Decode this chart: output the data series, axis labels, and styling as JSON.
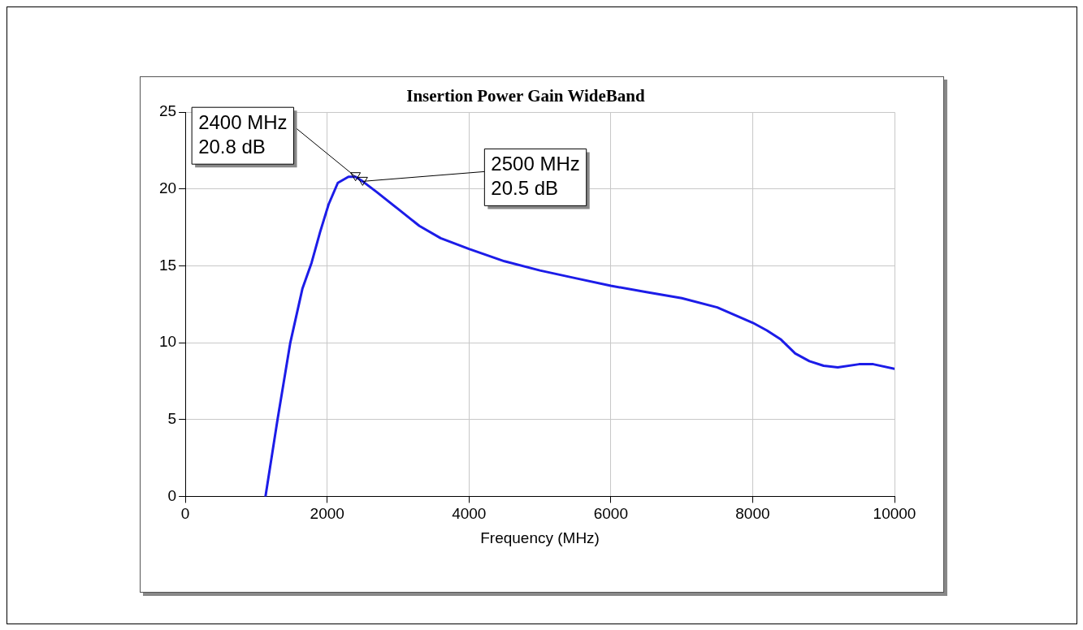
{
  "chart_data": {
    "type": "line",
    "title": "Insertion Power Gain WideBand",
    "xlabel": "Frequency (MHz)",
    "series": [
      {
        "color": "#1c1ce8",
        "x": [
          1130,
          1300,
          1480,
          1650,
          1780,
          1900,
          2020,
          2150,
          2300,
          2400,
          2500,
          2700,
          3000,
          3300,
          3600,
          4000,
          4500,
          5000,
          5500,
          6000,
          6500,
          7000,
          7500,
          8000,
          8200,
          8400,
          8600,
          8800,
          9000,
          9200,
          9500,
          9700,
          10000
        ],
        "values": [
          0,
          5,
          10,
          13.5,
          15.2,
          17.2,
          19,
          20.4,
          20.8,
          20.8,
          20.5,
          19.8,
          18.7,
          17.6,
          16.8,
          16.1,
          15.3,
          14.7,
          14.2,
          13.7,
          13.3,
          12.9,
          12.3,
          11.3,
          10.8,
          10.2,
          9.3,
          8.8,
          8.5,
          8.4,
          8.6,
          8.6,
          8.3
        ]
      }
    ],
    "xlim": [
      0,
      10000
    ],
    "xticks": [
      0,
      2000,
      4000,
      6000,
      8000,
      10000
    ],
    "ylim": [
      0,
      25
    ],
    "yticks": [
      0,
      5,
      10,
      15,
      20,
      25
    ],
    "grid": true,
    "legend": false,
    "marker": "none",
    "line_style": "solid",
    "annotations": [
      {
        "text": "2400 MHz\n20.8 dB",
        "x": 2400,
        "y": 20.8
      },
      {
        "text": "2500 MHz\n20.5 dB",
        "x": 2500,
        "y": 20.5
      }
    ]
  }
}
